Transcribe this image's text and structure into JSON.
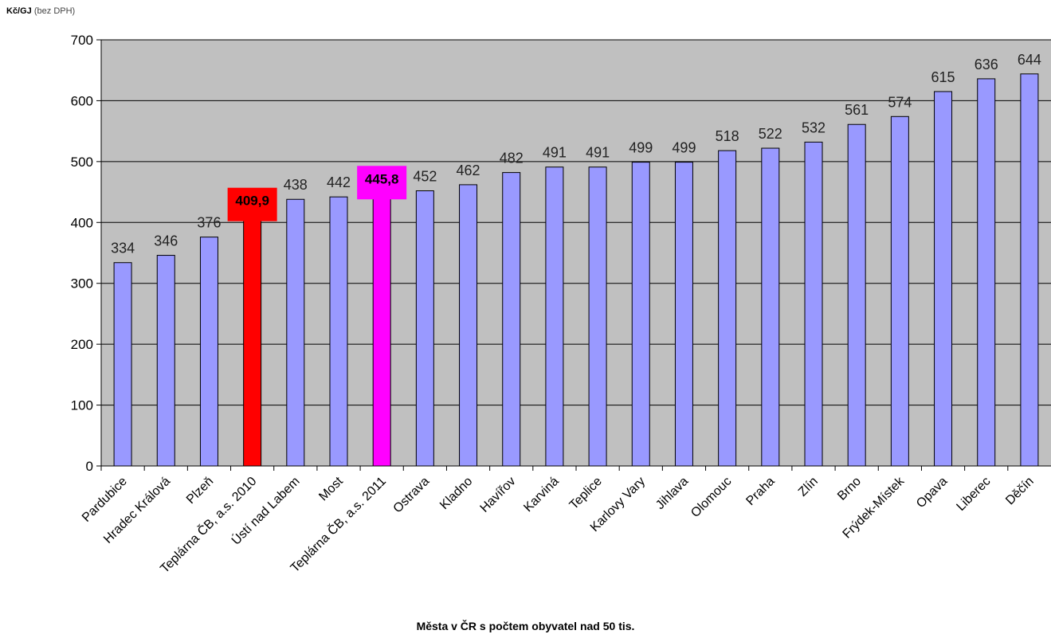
{
  "chart_data": {
    "type": "bar",
    "ylabel_main": "Kč/GJ",
    "ylabel_sub": "(bez DPH)",
    "xlabel": "Města v ČR s počtem obyvatel nad 50 tis.",
    "ylim": [
      0,
      700
    ],
    "y_ticks": [
      "0",
      "100",
      "200",
      "300",
      "400",
      "500",
      "600",
      "700"
    ],
    "grid": true,
    "plot_bg": "#c0c0c0",
    "default_bar_color": "#9999ff",
    "categories": [
      "Pardubice",
      "Hradec Králová",
      "Plzeň",
      "Teplárna ČB, a.s. 2010",
      "Ústí nad Labem",
      "Most",
      "Teplárna ČB, a.s. 2011",
      "Ostrava",
      "Kladno",
      "Havířov",
      "Karviná",
      "Teplice",
      "Karlovy Vary",
      "Jihlava",
      "Olomouc",
      "Praha",
      "Zlín",
      "Brno",
      "Frýdek-Místek",
      "Opava",
      "Liberec",
      "Děčín"
    ],
    "values": [
      334,
      346,
      376,
      409.9,
      438,
      442,
      445.8,
      452,
      462,
      482,
      491,
      491,
      499,
      499,
      518,
      522,
      532,
      561,
      574,
      615,
      636,
      644
    ],
    "value_labels": [
      "334",
      "346",
      "376",
      "409,9",
      "438",
      "442",
      "445,8",
      "452",
      "462",
      "482",
      "491",
      "491",
      "499",
      "499",
      "518",
      "522",
      "532",
      "561",
      "574",
      "615",
      "636",
      "644"
    ],
    "highlights": [
      {
        "index": 3,
        "color": "#ff0000"
      },
      {
        "index": 6,
        "color": "#ff00ff"
      }
    ]
  }
}
